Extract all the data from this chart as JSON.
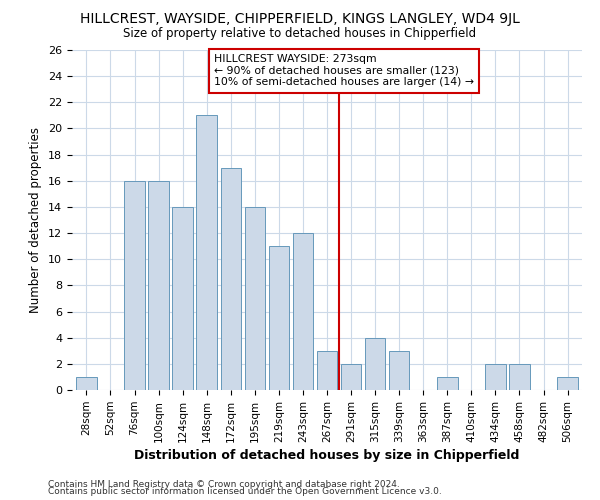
{
  "title": "HILLCREST, WAYSIDE, CHIPPERFIELD, KINGS LANGLEY, WD4 9JL",
  "subtitle": "Size of property relative to detached houses in Chipperfield",
  "xlabel": "Distribution of detached houses by size in Chipperfield",
  "ylabel": "Number of detached properties",
  "footnote1": "Contains HM Land Registry data © Crown copyright and database right 2024.",
  "footnote2": "Contains public sector information licensed under the Open Government Licence v3.0.",
  "bar_labels": [
    "28sqm",
    "52sqm",
    "76sqm",
    "100sqm",
    "124sqm",
    "148sqm",
    "172sqm",
    "195sqm",
    "219sqm",
    "243sqm",
    "267sqm",
    "291sqm",
    "315sqm",
    "339sqm",
    "363sqm",
    "387sqm",
    "410sqm",
    "434sqm",
    "458sqm",
    "482sqm",
    "506sqm"
  ],
  "bar_values": [
    1,
    0,
    16,
    16,
    14,
    21,
    17,
    14,
    11,
    12,
    3,
    2,
    4,
    3,
    0,
    1,
    0,
    2,
    2,
    0,
    1
  ],
  "bar_color": "#ccd9e8",
  "bar_edge_color": "#6699bb",
  "property_label": "HILLCREST WAYSIDE: 273sqm",
  "annotation_line1": "← 90% of detached houses are smaller (123)",
  "annotation_line2": "10% of semi-detached houses are larger (14) →",
  "vline_color": "#cc0000",
  "vline_x_index": 10.5,
  "annotation_box_color": "#cc0000",
  "ylim": [
    0,
    26
  ],
  "yticks": [
    0,
    2,
    4,
    6,
    8,
    10,
    12,
    14,
    16,
    18,
    20,
    22,
    24,
    26
  ],
  "background_color": "#ffffff",
  "grid_color": "#ccd9e8"
}
